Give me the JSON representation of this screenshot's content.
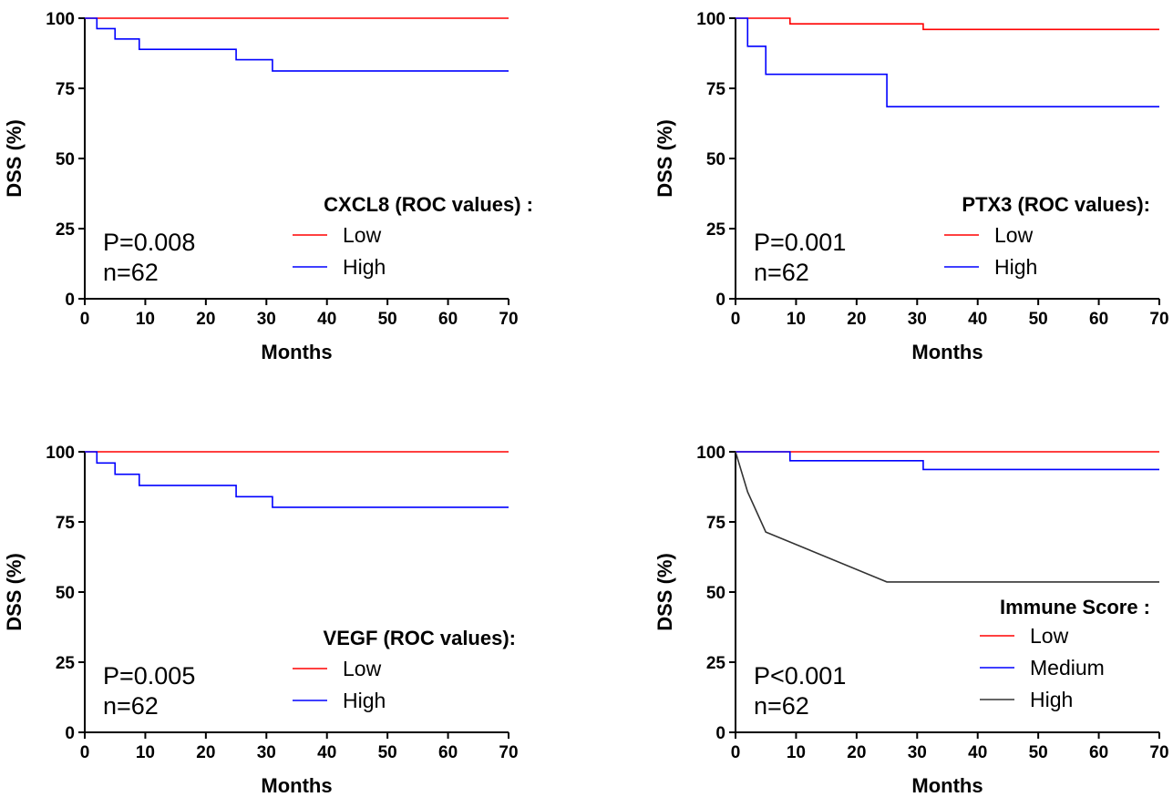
{
  "chart_data": [
    {
      "type": "line",
      "step": true,
      "xlabel": "Months",
      "ylabel": "DSS (%)",
      "xlim": [
        0,
        70
      ],
      "ylim": [
        0,
        100
      ],
      "xticks": [
        "0",
        "10",
        "20",
        "30",
        "40",
        "50",
        "60",
        "70"
      ],
      "yticks": [
        "0",
        "25",
        "50",
        "75",
        "100"
      ],
      "legend_title": "CXCL8 (ROC values) :",
      "stats": [
        "P=0.008",
        "n=62"
      ],
      "series": [
        {
          "name": "Low",
          "color": "#ff0000",
          "x": [
            0,
            70
          ],
          "y": [
            100,
            100
          ]
        },
        {
          "name": "High",
          "color": "#0000ff",
          "x": [
            0,
            2,
            5,
            9,
            25,
            31,
            70
          ],
          "y": [
            100,
            96.3,
            92.6,
            88.9,
            85.2,
            81.2,
            81.2
          ]
        }
      ]
    },
    {
      "type": "line",
      "step": true,
      "xlabel": "Months",
      "ylabel": "DSS (%)",
      "xlim": [
        0,
        70
      ],
      "ylim": [
        0,
        100
      ],
      "xticks": [
        "0",
        "10",
        "20",
        "30",
        "40",
        "50",
        "60",
        "70"
      ],
      "yticks": [
        "0",
        "25",
        "50",
        "75",
        "100"
      ],
      "legend_title": "PTX3 (ROC values):",
      "stats": [
        "P=0.001",
        "n=62"
      ],
      "series": [
        {
          "name": "Low",
          "color": "#ff0000",
          "x": [
            0,
            9,
            31,
            70
          ],
          "y": [
            100,
            98,
            96,
            96
          ]
        },
        {
          "name": "High",
          "color": "#0000ff",
          "x": [
            0,
            2,
            5,
            25,
            70
          ],
          "y": [
            100,
            90,
            80,
            68.5,
            68.5
          ]
        }
      ]
    },
    {
      "type": "line",
      "step": true,
      "xlabel": "Months",
      "ylabel": "DSS (%)",
      "xlim": [
        0,
        70
      ],
      "ylim": [
        0,
        100
      ],
      "xticks": [
        "0",
        "10",
        "20",
        "30",
        "40",
        "50",
        "60",
        "70"
      ],
      "yticks": [
        "0",
        "25",
        "50",
        "75",
        "100"
      ],
      "legend_title": "VEGF (ROC values):",
      "stats": [
        "P=0.005",
        "n=62"
      ],
      "series": [
        {
          "name": "Low",
          "color": "#ff0000",
          "x": [
            0,
            70
          ],
          "y": [
            100,
            100
          ]
        },
        {
          "name": "High",
          "color": "#0000ff",
          "x": [
            0,
            2,
            5,
            9,
            25,
            31,
            70
          ],
          "y": [
            100,
            96,
            92,
            88,
            84,
            80.2,
            80.2
          ]
        }
      ]
    },
    {
      "type": "line",
      "step": true,
      "xlabel": "Months",
      "ylabel": "DSS (%)",
      "xlim": [
        0,
        70
      ],
      "ylim": [
        0,
        100
      ],
      "xticks": [
        "0",
        "10",
        "20",
        "30",
        "40",
        "50",
        "60",
        "70"
      ],
      "yticks": [
        "0",
        "25",
        "50",
        "75",
        "100"
      ],
      "legend_title": "Immune Score :",
      "stats": [
        "P<0.001",
        "n=62"
      ],
      "series": [
        {
          "name": "Low",
          "color": "#ff0000",
          "step": true,
          "x": [
            0,
            70
          ],
          "y": [
            100,
            100
          ]
        },
        {
          "name": "Medium",
          "color": "#0000ff",
          "step": true,
          "x": [
            0,
            9,
            31,
            70
          ],
          "y": [
            100,
            96.8,
            93.7,
            93.7
          ]
        },
        {
          "name": "High",
          "color": "#333333",
          "step": false,
          "x": [
            0,
            2,
            5,
            25,
            70
          ],
          "y": [
            100,
            85.7,
            71.4,
            53.6,
            53.6
          ]
        }
      ]
    }
  ]
}
